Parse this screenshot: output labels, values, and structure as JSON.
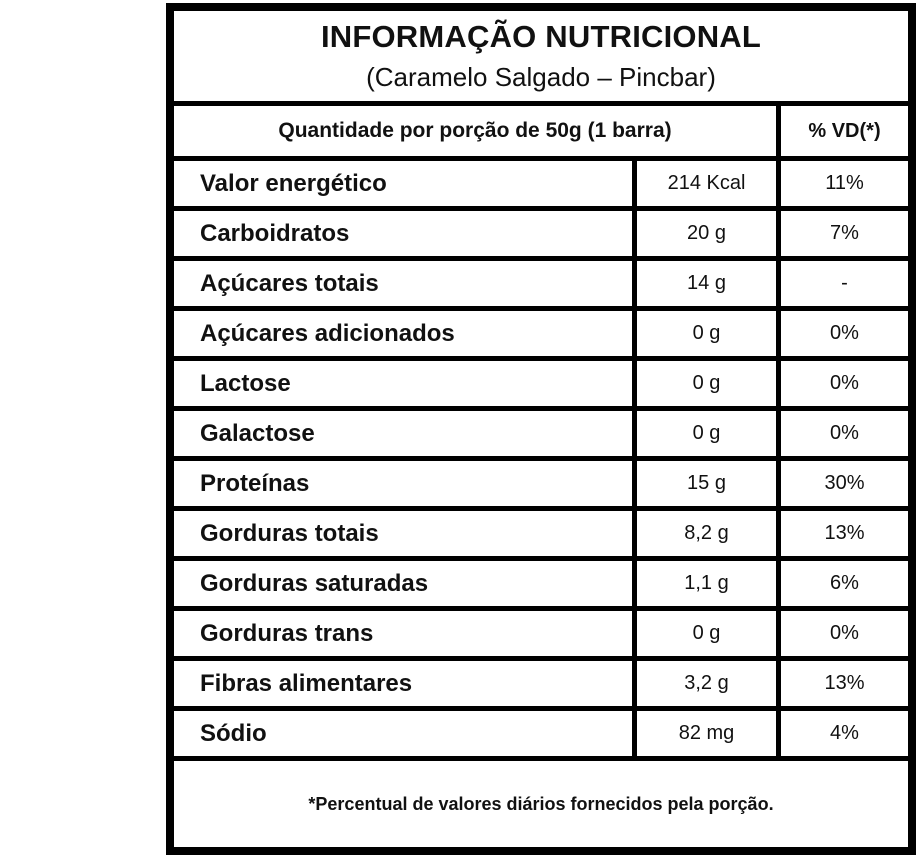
{
  "table": {
    "title": "INFORMAÇÃO NUTRICIONAL",
    "subtitle": "(Caramelo Salgado – Pincbar)",
    "header": {
      "quantity_label": "Quantidade por porção de 50g (1 barra)",
      "dv_label": "% VD(*)"
    },
    "rows": [
      {
        "nutrient": "Valor energético",
        "amount": "214 Kcal",
        "dv": "11%"
      },
      {
        "nutrient": "Carboidratos",
        "amount": "20 g",
        "dv": "7%"
      },
      {
        "nutrient": "Açúcares totais",
        "amount": "14 g",
        "dv": "-"
      },
      {
        "nutrient": "Açúcares adicionados",
        "amount": "0 g",
        "dv": "0%"
      },
      {
        "nutrient": "Lactose",
        "amount": "0 g",
        "dv": "0%"
      },
      {
        "nutrient": "Galactose",
        "amount": "0 g",
        "dv": "0%"
      },
      {
        "nutrient": "Proteínas",
        "amount": "15 g",
        "dv": "30%"
      },
      {
        "nutrient": "Gorduras totais",
        "amount": "8,2 g",
        "dv": "13%"
      },
      {
        "nutrient": "Gorduras saturadas",
        "amount": "1,1 g",
        "dv": "6%"
      },
      {
        "nutrient": "Gorduras trans",
        "amount": "0 g",
        "dv": "0%"
      },
      {
        "nutrient": "Fibras alimentares",
        "amount": "3,2 g",
        "dv": "13%"
      },
      {
        "nutrient": "Sódio",
        "amount": "82 mg",
        "dv": "4%"
      }
    ],
    "footnote": "*Percentual de valores diários fornecidos pela porção.",
    "colors": {
      "border": "#000000",
      "background": "#ffffff",
      "text": "#111111"
    }
  }
}
